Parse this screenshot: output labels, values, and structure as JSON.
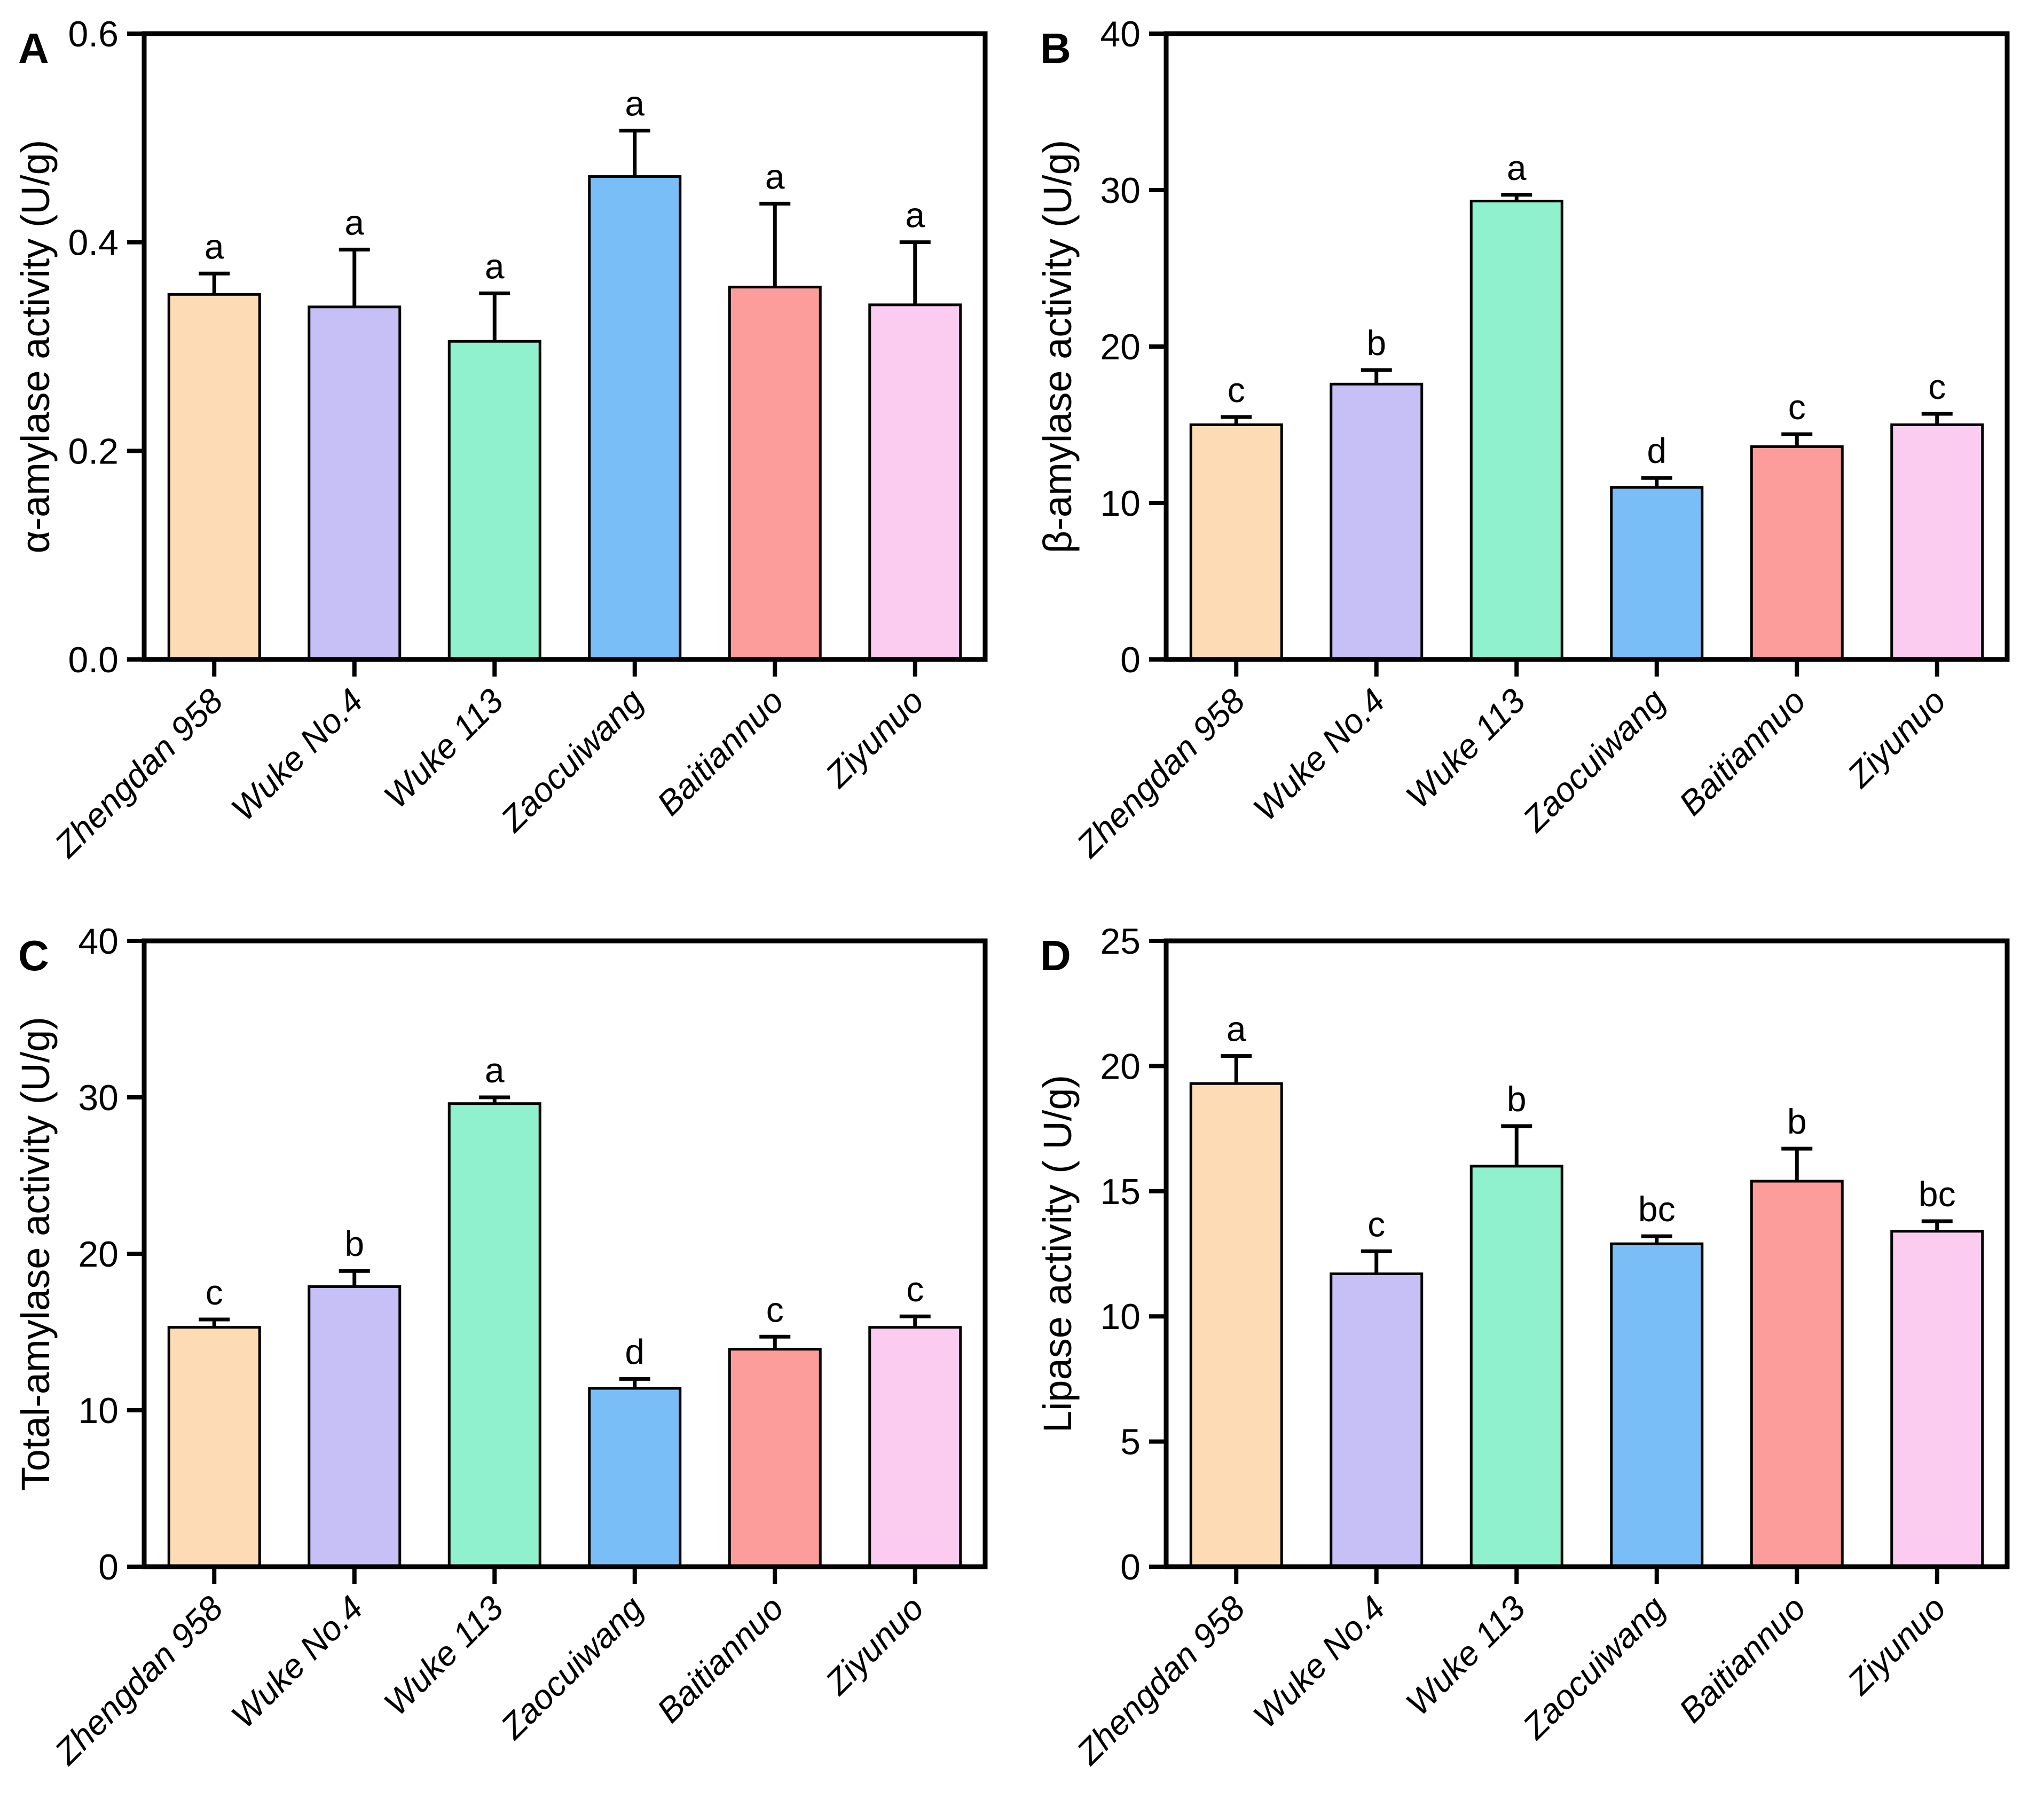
{
  "figure": {
    "background": "#ffffff",
    "frame_color": "#000000",
    "text_color": "#000000"
  },
  "chart_data": {
    "type": "bar",
    "layout": "2x2-grid",
    "grid": false,
    "legend": null,
    "categories": [
      "Zhengdan 958",
      "Wuke No.4",
      "Wuke 113",
      "Zaocuiwang",
      "Baitiannuo",
      "Ziyunuo"
    ],
    "bar_colors": [
      "#FDDCB5",
      "#C6C0F6",
      "#90F1CF",
      "#7ABEF8",
      "#FC9D9B",
      "#FBCBF0"
    ],
    "bar_edge_color": "#000000",
    "error_bar_color": "#000000",
    "panels": [
      {
        "letter": "A",
        "ylabel": "α-amylase activity (U/g)",
        "ylim": [
          0,
          0.6
        ],
        "ytick_values": [
          0,
          0.2,
          0.4,
          0.6
        ],
        "ytick_labels": [
          "0.0",
          "0.2",
          "0.4",
          "0.6"
        ],
        "values": [
          0.35,
          0.338,
          0.305,
          0.463,
          0.357,
          0.34
        ],
        "errors": [
          0.02,
          0.055,
          0.046,
          0.044,
          0.08,
          0.06
        ],
        "sig_letters": [
          "a",
          "a",
          "a",
          "a",
          "a",
          "a"
        ]
      },
      {
        "letter": "B",
        "ylabel": "β-amylase activity (U/g)",
        "ylim": [
          0,
          40
        ],
        "ytick_values": [
          0,
          10,
          20,
          30,
          40
        ],
        "ytick_labels": [
          "0",
          "10",
          "20",
          "30",
          "40"
        ],
        "values": [
          15.0,
          17.6,
          29.3,
          11.0,
          13.6,
          15.0
        ],
        "errors": [
          0.5,
          0.9,
          0.4,
          0.6,
          0.8,
          0.7
        ],
        "sig_letters": [
          "c",
          "b",
          "a",
          "d",
          "c",
          "c"
        ]
      },
      {
        "letter": "C",
        "ylabel": "Total-amylase activity (U/g)",
        "ylim": [
          0,
          40
        ],
        "ytick_values": [
          0,
          10,
          20,
          30,
          40
        ],
        "ytick_labels": [
          "0",
          "10",
          "20",
          "30",
          "40"
        ],
        "values": [
          15.3,
          17.9,
          29.6,
          11.4,
          13.9,
          15.3
        ],
        "errors": [
          0.5,
          1.0,
          0.4,
          0.6,
          0.8,
          0.7
        ],
        "sig_letters": [
          "c",
          "b",
          "a",
          "d",
          "c",
          "c"
        ]
      },
      {
        "letter": "D",
        "ylabel": "Lipase activity ( U/g)",
        "ylim": [
          0,
          25
        ],
        "ytick_values": [
          0,
          5,
          10,
          15,
          20,
          25
        ],
        "ytick_labels": [
          "0",
          "5",
          "10",
          "15",
          "20",
          "25"
        ],
        "values": [
          19.3,
          11.7,
          16.0,
          12.9,
          15.4,
          13.4
        ],
        "errors": [
          1.1,
          0.9,
          1.6,
          0.3,
          1.3,
          0.4
        ],
        "sig_letters": [
          "a",
          "c",
          "b",
          "bc",
          "b",
          "bc"
        ]
      }
    ]
  }
}
